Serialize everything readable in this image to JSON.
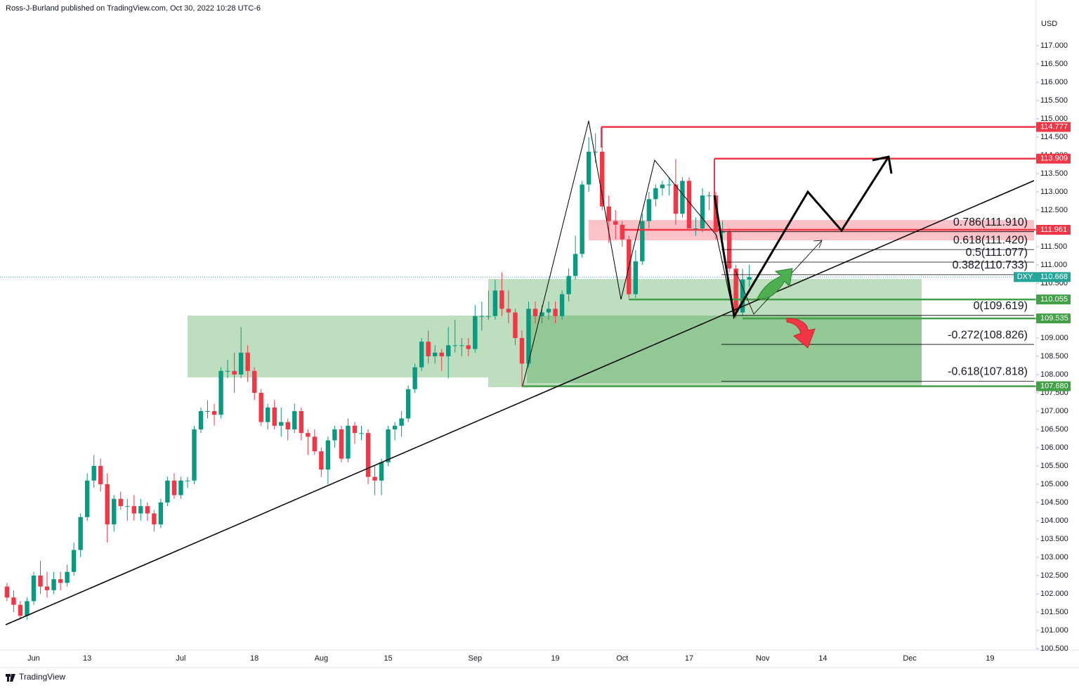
{
  "chart_data": {
    "type": "candlestick",
    "title": "Ross-J-Burland published on TradingView.com, Oct 30, 2022 10:28 UTC-6",
    "footer": "TradingView",
    "y_label": "USD",
    "up_color": "#089981",
    "down_color": "#f23645",
    "ylim": [
      100.5,
      118.25
    ],
    "yticks": [
      {
        "value": 100.5,
        "label": "100.500"
      },
      {
        "value": 101,
        "label": "101.000"
      },
      {
        "value": 101.5,
        "label": "101.500"
      },
      {
        "value": 102,
        "label": "102.000"
      },
      {
        "value": 102.5,
        "label": "102.500"
      },
      {
        "value": 103,
        "label": "103.000"
      },
      {
        "value": 103.5,
        "label": "103.500"
      },
      {
        "value": 104,
        "label": "104.000"
      },
      {
        "value": 104.5,
        "label": "104.500"
      },
      {
        "value": 105,
        "label": "105.000"
      },
      {
        "value": 105.5,
        "label": "105.500"
      },
      {
        "value": 106,
        "label": "106.000"
      },
      {
        "value": 106.5,
        "label": "106.500"
      },
      {
        "value": 107,
        "label": "107.000"
      },
      {
        "value": 107.5,
        "label": "107.500"
      },
      {
        "value": 108,
        "label": "108.000"
      },
      {
        "value": 108.5,
        "label": "108.500"
      },
      {
        "value": 109,
        "label": "109.000"
      },
      {
        "value": 109.5,
        "label": "109.500"
      },
      {
        "value": 110,
        "label": "110.000"
      },
      {
        "value": 110.5,
        "label": "110.500"
      },
      {
        "value": 111,
        "label": "111.000"
      },
      {
        "value": 111.5,
        "label": "111.500"
      },
      {
        "value": 112,
        "label": "112.000"
      },
      {
        "value": 112.5,
        "label": "112.500"
      },
      {
        "value": 113,
        "label": "113.000"
      },
      {
        "value": 113.5,
        "label": "113.500"
      },
      {
        "value": 114,
        "label": "114.000"
      },
      {
        "value": 114.5,
        "label": "114.500"
      },
      {
        "value": 115,
        "label": "115.000"
      },
      {
        "value": 115.5,
        "label": "115.500"
      },
      {
        "value": 116,
        "label": "116.000"
      },
      {
        "value": 116.5,
        "label": "116.500"
      },
      {
        "value": 117,
        "label": "117.000"
      }
    ],
    "categories": [
      null,
      null,
      null,
      null,
      "Jun",
      null,
      null,
      null,
      null,
      null,
      null,
      null,
      "13",
      null,
      null,
      null,
      null,
      null,
      null,
      null,
      null,
      null,
      null,
      null,
      null,
      null,
      "Jul",
      null,
      null,
      null,
      null,
      null,
      null,
      null,
      null,
      null,
      null,
      "18",
      null,
      null,
      null,
      null,
      null,
      null,
      null,
      null,
      null,
      "Aug",
      null,
      null,
      null,
      null,
      null,
      null,
      null,
      null,
      null,
      "15",
      null,
      null,
      null,
      null,
      null,
      null,
      null,
      null,
      null,
      null,
      null,
      null,
      "Sep",
      null,
      null,
      null,
      null,
      null,
      null,
      null,
      null,
      null,
      null,
      null,
      "19",
      null,
      null,
      null,
      null,
      null,
      null,
      null,
      null,
      null,
      "Oct",
      null,
      null,
      null,
      null,
      null,
      null,
      null,
      null,
      null,
      "17",
      null,
      null,
      null,
      null,
      null,
      null,
      null,
      null,
      null,
      null,
      "Nov",
      null,
      null,
      null,
      null,
      null,
      null,
      null,
      null,
      "14",
      null,
      null,
      null,
      null,
      null,
      null,
      null,
      null,
      null,
      null,
      null,
      null,
      "Dec",
      null,
      null,
      null,
      null,
      null,
      null,
      null,
      null,
      null,
      null,
      null,
      "19",
      null,
      null,
      null,
      null,
      null,
      null,
      null
    ],
    "open": [
      102.2,
      101.9,
      101.7,
      101.4,
      101.8,
      102.5,
      102.2,
      102.1,
      102.4,
      102.3,
      102.6,
      103.2,
      104.1,
      105.1,
      105.5,
      105.0,
      103.9,
      104.6,
      104.4,
      104.4,
      104.2,
      104.4,
      104.2,
      103.9,
      104.5,
      105.1,
      104.7,
      105.1,
      105.1,
      106.5,
      107.0,
      107.0,
      106.9,
      108.1,
      108.1,
      108.0,
      108.6,
      108.1,
      107.5,
      106.7,
      107.1,
      106.6,
      106.7,
      106.5,
      107.0,
      106.4,
      106.3,
      105.9,
      105.4,
      106.2,
      106.5,
      105.7,
      106.6,
      106.4,
      106.4,
      105.2,
      105.1,
      105.6,
      106.5,
      106.6,
      106.8,
      107.6,
      108.2,
      108.9,
      108.5,
      108.6,
      108.5,
      108.8,
      108.8,
      108.8,
      108.7,
      109.6,
      109.6,
      109.6,
      110.3,
      109.8,
      109.7,
      109.0,
      108.3,
      109.8,
      109.6,
      109.7,
      109.8,
      109.6,
      110.2,
      110.7,
      111.3,
      113.2,
      114.1,
      114.1,
      112.6,
      112.2,
      112.1,
      111.7,
      110.2,
      111.1,
      112.2,
      112.8,
      113.1,
      113.2,
      113.2,
      112.4,
      113.3,
      112.0,
      112.0,
      112.9,
      112.9,
      111.9,
      111.9,
      110.9,
      109.7,
      110.6,
      null,
      null,
      null,
      null,
      null,
      null,
      null,
      null,
      null,
      null,
      null,
      null,
      null,
      null,
      null,
      null,
      null,
      null,
      null,
      null,
      null,
      null,
      null,
      null,
      null,
      null,
      null,
      null,
      null,
      null,
      null,
      null,
      null,
      null,
      null,
      null,
      null,
      null,
      null,
      null,
      null,
      null,
      null
    ],
    "high": [
      102.3,
      102.1,
      101.8,
      101.9,
      102.6,
      102.9,
      102.6,
      102.6,
      102.6,
      102.8,
      103.4,
      104.2,
      105.3,
      105.8,
      105.7,
      105.3,
      104.7,
      104.8,
      104.6,
      104.7,
      104.6,
      104.5,
      104.3,
      104.6,
      105.2,
      105.3,
      105.2,
      105.2,
      106.6,
      107.1,
      107.3,
      107.2,
      108.2,
      108.4,
      108.6,
      109.3,
      108.8,
      108.2,
      107.6,
      107.2,
      107.3,
      107.1,
      106.8,
      107.2,
      107.1,
      106.5,
      106.5,
      106.0,
      106.3,
      106.6,
      106.6,
      106.8,
      106.7,
      106.6,
      106.5,
      105.5,
      105.7,
      106.6,
      106.7,
      107.0,
      107.7,
      108.3,
      109.0,
      109.2,
      108.8,
      108.7,
      109.3,
      109.5,
      109.0,
      109.0,
      109.9,
      110.0,
      110.3,
      110.6,
      110.8,
      110.3,
      109.8,
      109.2,
      110.0,
      110.0,
      109.9,
      110.0,
      110.0,
      110.3,
      110.9,
      111.8,
      113.3,
      114.5,
      114.6,
      114.78,
      112.9,
      112.5,
      112.2,
      111.8,
      111.4,
      112.4,
      113.0,
      113.2,
      113.3,
      113.4,
      113.9,
      113.4,
      113.4,
      112.3,
      113.1,
      113.0,
      113.0,
      112.2,
      112.0,
      111.0,
      110.9,
      111.0,
      null,
      null,
      null,
      null,
      null,
      null,
      null,
      null,
      null,
      null,
      null,
      null,
      null,
      null,
      null,
      null,
      null,
      null,
      null,
      null,
      null,
      null,
      null,
      null,
      null,
      null,
      null,
      null,
      null,
      null,
      null,
      null,
      null,
      null,
      null,
      null,
      null,
      null,
      null,
      null,
      null,
      null,
      null
    ],
    "low": [
      101.8,
      101.5,
      101.3,
      101.3,
      101.7,
      102.0,
      101.9,
      102.0,
      102.1,
      102.2,
      102.5,
      103.0,
      104.0,
      104.9,
      104.8,
      103.4,
      103.7,
      104.3,
      104.0,
      104.0,
      104.0,
      104.0,
      103.7,
      103.8,
      104.4,
      104.6,
      104.6,
      104.9,
      105.0,
      106.4,
      106.8,
      106.6,
      106.8,
      107.9,
      107.5,
      107.9,
      107.8,
      107.3,
      106.6,
      106.5,
      106.5,
      106.3,
      106.2,
      106.4,
      106.2,
      105.8,
      105.8,
      105.2,
      105.0,
      106.0,
      105.6,
      105.6,
      106.1,
      106.2,
      105.0,
      104.7,
      104.7,
      105.5,
      106.2,
      106.3,
      106.7,
      107.5,
      108.1,
      108.3,
      108.3,
      108.1,
      107.9,
      108.6,
      108.5,
      108.5,
      108.6,
      109.2,
      109.5,
      109.5,
      109.6,
      109.4,
      108.8,
      107.68,
      108.2,
      109.4,
      109.4,
      109.5,
      109.4,
      109.5,
      110.0,
      110.6,
      111.2,
      113.0,
      113.8,
      112.5,
      111.6,
      111.7,
      111.5,
      110.1,
      110.1,
      111.0,
      112.0,
      112.6,
      112.9,
      112.9,
      112.1,
      112.3,
      112.0,
      111.8,
      111.9,
      112.5,
      111.7,
      111.7,
      110.8,
      109.535,
      109.6,
      110.4,
      null,
      null,
      null,
      null,
      null,
      null,
      null,
      null,
      null,
      null,
      null,
      null,
      null,
      null,
      null,
      null,
      null,
      null,
      null,
      null,
      null,
      null,
      null,
      null,
      null,
      null,
      null,
      null,
      null,
      null,
      null,
      null,
      null,
      null,
      null,
      null,
      null,
      null,
      null,
      null,
      null,
      null,
      null
    ],
    "close": [
      101.9,
      101.7,
      101.4,
      101.8,
      102.5,
      102.2,
      102.1,
      102.4,
      102.3,
      102.6,
      103.2,
      104.1,
      105.1,
      105.5,
      105.0,
      103.9,
      104.6,
      104.4,
      104.4,
      104.2,
      104.4,
      104.2,
      103.9,
      104.5,
      105.1,
      104.7,
      105.1,
      105.1,
      106.5,
      107.0,
      107.0,
      106.9,
      108.1,
      108.1,
      108.0,
      108.6,
      108.1,
      107.5,
      106.7,
      107.1,
      106.6,
      106.7,
      106.5,
      107.0,
      106.4,
      106.3,
      105.9,
      105.4,
      106.2,
      106.5,
      105.7,
      106.6,
      106.4,
      106.4,
      105.2,
      105.1,
      105.6,
      106.5,
      106.6,
      106.8,
      107.6,
      108.2,
      108.9,
      108.5,
      108.6,
      108.5,
      108.8,
      108.8,
      108.8,
      108.7,
      109.6,
      109.6,
      109.6,
      110.3,
      109.8,
      109.7,
      109.0,
      108.3,
      109.8,
      109.6,
      109.7,
      109.8,
      109.6,
      110.2,
      110.7,
      111.3,
      113.2,
      114.1,
      114.1,
      112.6,
      112.2,
      112.1,
      111.7,
      110.2,
      111.1,
      112.2,
      112.8,
      113.1,
      113.2,
      113.2,
      112.4,
      113.3,
      112.0,
      112.0,
      112.9,
      112.9,
      111.9,
      111.9,
      110.9,
      109.7,
      110.6,
      110.668,
      null,
      null,
      null,
      null,
      null,
      null,
      null,
      null,
      null,
      null,
      null,
      null,
      null,
      null,
      null,
      null,
      null,
      null,
      null,
      null,
      null,
      null,
      null,
      null,
      null,
      null,
      null,
      null,
      null,
      null,
      null,
      null,
      null,
      null,
      null,
      null,
      null,
      null,
      null,
      null,
      null,
      null,
      null
    ],
    "current_price": {
      "value": 110.668,
      "label": "110.668",
      "symbol": "DXY",
      "color": "#26a69a"
    },
    "levels": [
      {
        "value": 114.777,
        "label": "114.777",
        "color": "#f23645"
      },
      {
        "value": 113.909,
        "label": "113.909",
        "color": "#f23645"
      },
      {
        "value": 111.961,
        "label": "111.961",
        "color": "#f23645"
      },
      {
        "value": 110.055,
        "label": "110.055",
        "color": "#43a047"
      },
      {
        "value": 109.535,
        "label": "109.535",
        "color": "#43a047"
      },
      {
        "value": 107.68,
        "label": "107.680",
        "color": "#43a047"
      }
    ],
    "fib_levels": [
      {
        "value": 111.91,
        "label": "0.786(111.910)"
      },
      {
        "value": 111.42,
        "label": "0.618(111.420)"
      },
      {
        "value": 111.077,
        "label": "0.5(111.077)"
      },
      {
        "value": 110.733,
        "label": "0.382(110.733)"
      },
      {
        "value": 109.619,
        "label": "0(109.619)"
      },
      {
        "value": 108.826,
        "label": "-0.272(108.826)"
      },
      {
        "value": 107.818,
        "label": "-0.618(107.818)"
      }
    ]
  }
}
